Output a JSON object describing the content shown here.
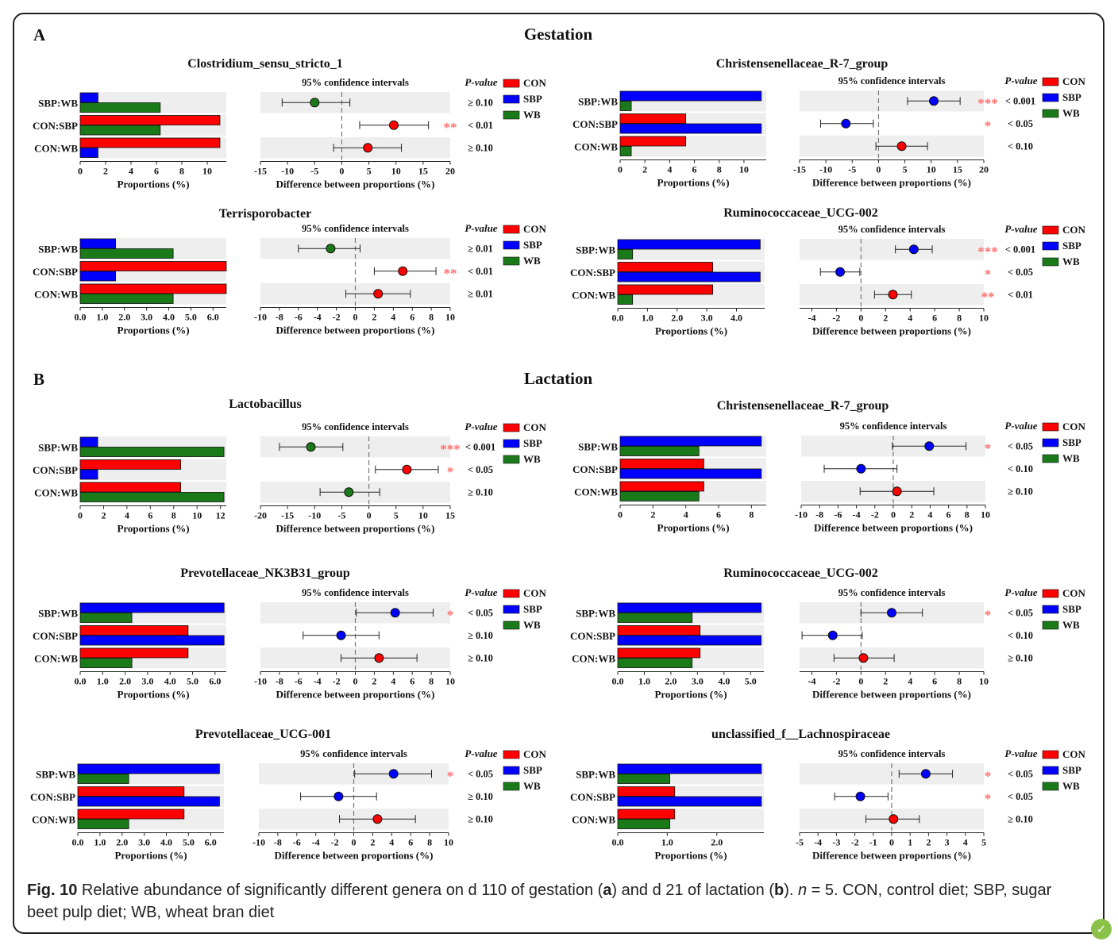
{
  "figure": {
    "colors": {
      "CON": "#ff0000",
      "SBP": "#0000ff",
      "WB": "#1a7a1a",
      "star": "#ff7070",
      "band": "#eeeeee"
    },
    "legend_header": "P-value",
    "ci_header": "95% confidence intervals",
    "prop_xlabel": "Proportions (%)",
    "diff_xlabel": "Difference between proportions (%)",
    "legend_items": [
      "CON",
      "SBP",
      "WB"
    ]
  },
  "sections": [
    {
      "letter": "A",
      "title": "Gestation"
    },
    {
      "letter": "B",
      "title": "Lactation"
    }
  ],
  "caption": {
    "fig_label": "Fig. 10",
    "text_1": " Relative abundance of significantly different genera on d 110 of gestation (",
    "a": "a",
    "text_2": ") and d 21 of lactation (",
    "b": "b",
    "text_3": "). ",
    "n": "n",
    "text_4": " = 5. CON, control diet; SBP, sugar beet pulp diet; WB, wheat bran diet"
  },
  "chart_data": [
    {
      "type": "bar",
      "section": "Gestation",
      "title": "Clostridium_sensu_stricto_1",
      "comparisons": [
        "SBP:WB",
        "CON:SBP",
        "CON:WB"
      ],
      "series": [
        {
          "name": "CON",
          "values": [
            null,
            11.0,
            11.0
          ]
        },
        {
          "name": "SBP",
          "values": [
            1.4,
            null,
            1.4
          ]
        },
        {
          "name": "WB",
          "values": [
            6.3,
            6.3,
            null
          ]
        }
      ],
      "proportions_ticks": [
        "0",
        "2",
        "4",
        "6",
        "8",
        "10"
      ],
      "proportions_xlim": [
        0,
        11.5
      ],
      "differences": [
        {
          "comparison": "SBP:WB",
          "estimate": -5,
          "ci": [
            -11,
            1.5
          ],
          "p": "≥ 0.10",
          "stars": ""
        },
        {
          "comparison": "CON:SBP",
          "estimate": 9.6,
          "ci": [
            3.3,
            16
          ],
          "p": "< 0.01",
          "stars": "**"
        },
        {
          "comparison": "CON:WB",
          "estimate": 4.8,
          "ci": [
            -1.5,
            11
          ],
          "p": "≥ 0.10",
          "stars": ""
        }
      ],
      "diff_ticks": [
        "-15",
        "-10",
        "-5",
        "0",
        "5",
        "10",
        "15",
        "20"
      ],
      "diff_xlim": [
        -15,
        20
      ]
    },
    {
      "type": "bar",
      "section": "Gestation",
      "title": "Christensenellaceae_R-7_group",
      "comparisons": [
        "SBP:WB",
        "CON:SBP",
        "CON:WB"
      ],
      "series": [
        {
          "name": "CON",
          "values": [
            null,
            5.3,
            5.3
          ]
        },
        {
          "name": "SBP",
          "values": [
            11.4,
            11.4,
            null
          ]
        },
        {
          "name": "WB",
          "values": [
            0.9,
            null,
            0.9
          ]
        }
      ],
      "proportions_ticks": [
        "0",
        "2",
        "4",
        "6",
        "8",
        "10"
      ],
      "proportions_xlim": [
        0,
        11.8
      ],
      "differences": [
        {
          "comparison": "SBP:WB",
          "estimate": 10.5,
          "ci": [
            5.5,
            15.5
          ],
          "p": "< 0.001",
          "stars": "***"
        },
        {
          "comparison": "CON:SBP",
          "estimate": -6.2,
          "ci": [
            -11,
            -1
          ],
          "p": "< 0.05",
          "stars": "*"
        },
        {
          "comparison": "CON:WB",
          "estimate": 4.4,
          "ci": [
            -0.5,
            9.3
          ],
          "p": "< 0.10",
          "stars": ""
        }
      ],
      "diff_ticks": [
        "-15",
        "-10",
        "-5",
        "0",
        "5",
        "10",
        "15",
        "20"
      ],
      "diff_xlim": [
        -15,
        20
      ]
    },
    {
      "type": "bar",
      "section": "Gestation",
      "title": "Terrisporobacter",
      "comparisons": [
        "SBP:WB",
        "CON:SBP",
        "CON:WB"
      ],
      "series": [
        {
          "name": "CON",
          "values": [
            null,
            6.6,
            6.6
          ]
        },
        {
          "name": "SBP",
          "values": [
            1.6,
            1.6,
            null
          ]
        },
        {
          "name": "WB",
          "values": [
            4.2,
            null,
            4.2
          ]
        }
      ],
      "proportions_ticks": [
        "0.0",
        "1.0",
        "2.0",
        "3.0",
        "4.0",
        "5.0",
        "6.0"
      ],
      "proportions_xlim": [
        0,
        6.6
      ],
      "differences": [
        {
          "comparison": "SBP:WB",
          "estimate": -2.6,
          "ci": [
            -6,
            0.5
          ],
          "p": "≥ 0.01",
          "stars": ""
        },
        {
          "comparison": "CON:SBP",
          "estimate": 5,
          "ci": [
            2,
            8.5
          ],
          "p": "< 0.01",
          "stars": "**"
        },
        {
          "comparison": "CON:WB",
          "estimate": 2.4,
          "ci": [
            -1,
            5.8
          ],
          "p": "≥ 0.01",
          "stars": ""
        }
      ],
      "diff_ticks": [
        "-10",
        "-8",
        "-6",
        "-4",
        "-2",
        "0",
        "2",
        "4",
        "6",
        "8",
        "10"
      ],
      "diff_xlim": [
        -10,
        10
      ]
    },
    {
      "type": "bar",
      "section": "Gestation",
      "title": "Ruminococcaceae_UCG-002",
      "comparisons": [
        "SBP:WB",
        "CON:SBP",
        "CON:WB"
      ],
      "series": [
        {
          "name": "CON",
          "values": [
            null,
            3.2,
            3.2
          ]
        },
        {
          "name": "SBP",
          "values": [
            4.8,
            4.8,
            null
          ]
        },
        {
          "name": "WB",
          "values": [
            0.5,
            null,
            0.5
          ]
        }
      ],
      "proportions_ticks": [
        "0.0",
        "1.0",
        "2.0",
        "3.0",
        "4.0"
      ],
      "proportions_xlim": [
        0,
        4.95
      ],
      "differences": [
        {
          "comparison": "SBP:WB",
          "estimate": 4.3,
          "ci": [
            2.8,
            5.8
          ],
          "p": "< 0.001",
          "stars": "***"
        },
        {
          "comparison": "CON:SBP",
          "estimate": -1.7,
          "ci": [
            -3.3,
            -0.1
          ],
          "p": "< 0.05",
          "stars": "*"
        },
        {
          "comparison": "CON:WB",
          "estimate": 2.6,
          "ci": [
            1.1,
            4.1
          ],
          "p": "< 0.01",
          "stars": "**"
        }
      ],
      "diff_ticks": [
        "-4",
        "-2",
        "0",
        "2",
        "4",
        "6",
        "8",
        "10"
      ],
      "diff_xlim": [
        -5,
        10
      ]
    },
    {
      "type": "bar",
      "section": "Lactation",
      "title": "Lactobacillus",
      "comparisons": [
        "SBP:WB",
        "CON:SBP",
        "CON:WB"
      ],
      "series": [
        {
          "name": "CON",
          "values": [
            null,
            8.6,
            8.6
          ]
        },
        {
          "name": "SBP",
          "values": [
            1.5,
            1.5,
            null
          ]
        },
        {
          "name": "WB",
          "values": [
            12.3,
            null,
            12.3
          ]
        }
      ],
      "proportions_ticks": [
        "0",
        "2",
        "4",
        "6",
        "8",
        "10",
        "12"
      ],
      "proportions_xlim": [
        0,
        12.5
      ],
      "differences": [
        {
          "comparison": "SBP:WB",
          "estimate": -10.7,
          "ci": [
            -16.5,
            -4.8
          ],
          "p": "< 0.001",
          "stars": "***"
        },
        {
          "comparison": "CON:SBP",
          "estimate": 7,
          "ci": [
            1.2,
            12.8
          ],
          "p": "< 0.05",
          "stars": "*"
        },
        {
          "comparison": "CON:WB",
          "estimate": -3.7,
          "ci": [
            -9,
            2
          ],
          "p": "≥ 0.10",
          "stars": ""
        }
      ],
      "diff_ticks": [
        "-20",
        "-15",
        "-10",
        "-5",
        "0",
        "5",
        "10",
        "15"
      ],
      "diff_xlim": [
        -20,
        15
      ]
    },
    {
      "type": "bar",
      "section": "Lactation",
      "title": "Christensenellaceae_R-7_group",
      "comparisons": [
        "SBP:WB",
        "CON:SBP",
        "CON:WB"
      ],
      "series": [
        {
          "name": "CON",
          "values": [
            null,
            5.1,
            5.1
          ]
        },
        {
          "name": "SBP",
          "values": [
            8.6,
            8.6,
            null
          ]
        },
        {
          "name": "WB",
          "values": [
            4.8,
            null,
            4.8
          ]
        }
      ],
      "proportions_ticks": [
        "0",
        "2",
        "4",
        "6",
        "8"
      ],
      "proportions_xlim": [
        0,
        8.9
      ],
      "differences": [
        {
          "comparison": "SBP:WB",
          "estimate": 3.9,
          "ci": [
            -0.1,
            7.9
          ],
          "p": "< 0.05",
          "stars": "*"
        },
        {
          "comparison": "CON:SBP",
          "estimate": -3.5,
          "ci": [
            -7.5,
            0.4
          ],
          "p": "< 0.10",
          "stars": ""
        },
        {
          "comparison": "CON:WB",
          "estimate": 0.4,
          "ci": [
            -3.6,
            4.4
          ],
          "p": "≥ 0.10",
          "stars": ""
        }
      ],
      "diff_ticks": [
        "-10",
        "-8",
        "-6",
        "-4",
        "-2",
        "0",
        "2",
        "4",
        "6",
        "8",
        "10"
      ],
      "diff_xlim": [
        -10,
        10
      ]
    },
    {
      "type": "bar",
      "section": "Lactation",
      "title": "Prevotellaceae_NK3B31_group",
      "comparisons": [
        "SBP:WB",
        "CON:SBP",
        "CON:WB"
      ],
      "series": [
        {
          "name": "CON",
          "values": [
            null,
            4.8,
            4.8
          ]
        },
        {
          "name": "SBP",
          "values": [
            6.4,
            6.4,
            null
          ]
        },
        {
          "name": "WB",
          "values": [
            2.3,
            null,
            2.3
          ]
        }
      ],
      "proportions_ticks": [
        "0.0",
        "1.0",
        "2.0",
        "3.0",
        "4.0",
        "5.0",
        "6.0"
      ],
      "proportions_xlim": [
        0,
        6.5
      ],
      "differences": [
        {
          "comparison": "SBP:WB",
          "estimate": 4.2,
          "ci": [
            0.1,
            8.2
          ],
          "p": "< 0.05",
          "stars": "*"
        },
        {
          "comparison": "CON:SBP",
          "estimate": -1.5,
          "ci": [
            -5.5,
            2.5
          ],
          "p": "≥ 0.10",
          "stars": ""
        },
        {
          "comparison": "CON:WB",
          "estimate": 2.5,
          "ci": [
            -1.5,
            6.5
          ],
          "p": "≥ 0.10",
          "stars": ""
        }
      ],
      "diff_ticks": [
        "-10",
        "-8",
        "-6",
        "-4",
        "-2",
        "0",
        "2",
        "4",
        "6",
        "8",
        "10"
      ],
      "diff_xlim": [
        -10,
        10
      ]
    },
    {
      "type": "bar",
      "section": "Lactation",
      "title": "Ruminococcaceae_UCG-002",
      "comparisons": [
        "SBP:WB",
        "CON:SBP",
        "CON:WB"
      ],
      "series": [
        {
          "name": "CON",
          "values": [
            null,
            3.1,
            3.1
          ]
        },
        {
          "name": "SBP",
          "values": [
            5.4,
            5.4,
            null
          ]
        },
        {
          "name": "WB",
          "values": [
            2.8,
            null,
            2.8
          ]
        }
      ],
      "proportions_ticks": [
        "0.0",
        "1.0",
        "2.0",
        "3.0",
        "4.0",
        "5.0"
      ],
      "proportions_xlim": [
        0,
        5.5
      ],
      "differences": [
        {
          "comparison": "SBP:WB",
          "estimate": 2.5,
          "ci": [
            0,
            5
          ],
          "p": "< 0.05",
          "stars": "*"
        },
        {
          "comparison": "CON:SBP",
          "estimate": -2.3,
          "ci": [
            -4.8,
            0.1
          ],
          "p": "< 0.10",
          "stars": ""
        },
        {
          "comparison": "CON:WB",
          "estimate": 0.2,
          "ci": [
            -2.2,
            2.7
          ],
          "p": "≥ 0.10",
          "stars": ""
        }
      ],
      "diff_ticks": [
        "-4",
        "-2",
        "0",
        "2",
        "4",
        "6",
        "8",
        "10"
      ],
      "diff_xlim": [
        -5,
        10
      ]
    },
    {
      "type": "bar",
      "section": "Lactation",
      "title": "Prevotellaceae_UCG-001",
      "comparisons": [
        "SBP:WB",
        "CON:SBP",
        "CON:WB"
      ],
      "series": [
        {
          "name": "CON",
          "values": [
            null,
            4.8,
            4.8
          ]
        },
        {
          "name": "SBP",
          "values": [
            6.4,
            6.4,
            null
          ]
        },
        {
          "name": "WB",
          "values": [
            2.3,
            null,
            2.3
          ]
        }
      ],
      "proportions_ticks": [
        "0.0",
        "1.0",
        "2.0",
        "3.0",
        "4.0",
        "5.0",
        "6.0"
      ],
      "proportions_xlim": [
        0,
        6.6
      ],
      "differences": [
        {
          "comparison": "SBP:WB",
          "estimate": 4.2,
          "ci": [
            0.1,
            8.2
          ],
          "p": "< 0.05",
          "stars": "*"
        },
        {
          "comparison": "CON:SBP",
          "estimate": -1.6,
          "ci": [
            -5.6,
            2.4
          ],
          "p": "≥ 0.10",
          "stars": ""
        },
        {
          "comparison": "CON:WB",
          "estimate": 2.5,
          "ci": [
            -1.5,
            6.5
          ],
          "p": "≥ 0.10",
          "stars": ""
        }
      ],
      "diff_ticks": [
        "-10",
        "-8",
        "-6",
        "-4",
        "-2",
        "0",
        "2",
        "4",
        "6",
        "8",
        "10"
      ],
      "diff_xlim": [
        -10,
        10
      ]
    },
    {
      "type": "bar",
      "section": "Lactation",
      "title": "unclassified_f__Lachnospiraceae",
      "comparisons": [
        "SBP:WB",
        "CON:SBP",
        "CON:WB"
      ],
      "series": [
        {
          "name": "CON",
          "values": [
            null,
            1.15,
            1.15
          ]
        },
        {
          "name": "SBP",
          "values": [
            2.9,
            2.9,
            null
          ]
        },
        {
          "name": "WB",
          "values": [
            1.05,
            null,
            1.05
          ]
        }
      ],
      "proportions_ticks": [
        "0.0",
        "1.0",
        "2.0"
      ],
      "proportions_xlim": [
        0,
        2.95
      ],
      "differences": [
        {
          "comparison": "SBP:WB",
          "estimate": 1.85,
          "ci": [
            0.4,
            3.3
          ],
          "p": "< 0.05",
          "stars": "*"
        },
        {
          "comparison": "CON:SBP",
          "estimate": -1.7,
          "ci": [
            -3.1,
            -0.2
          ],
          "p": "< 0.05",
          "stars": "*"
        },
        {
          "comparison": "CON:WB",
          "estimate": 0.1,
          "ci": [
            -1.4,
            1.5
          ],
          "p": "≥ 0.10",
          "stars": ""
        }
      ],
      "diff_ticks": [
        "-5",
        "-4",
        "-3",
        "-2",
        "-1",
        "0",
        "1",
        "2",
        "3",
        "4",
        "5"
      ],
      "diff_xlim": [
        -5,
        5
      ]
    }
  ]
}
